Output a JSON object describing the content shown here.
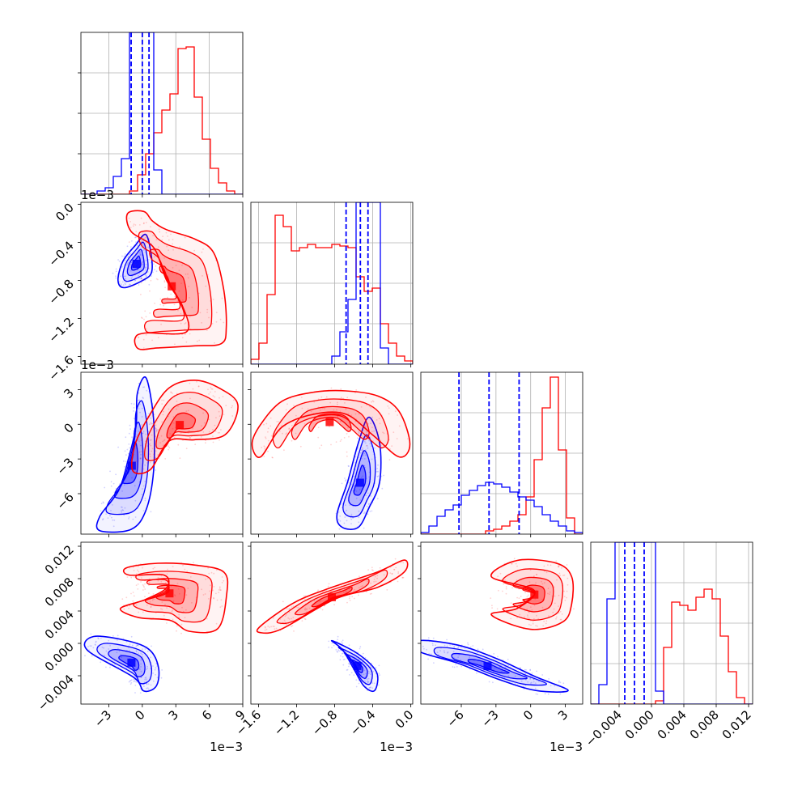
{
  "chart_data": {
    "type": "corner",
    "colors": {
      "blue": "#0000ff",
      "red": "#ff0000"
    },
    "params": [
      {
        "range": [
          -5.5,
          9.0
        ],
        "ticks": [
          -3,
          0,
          3,
          6,
          9
        ],
        "tick_labels": [
          "−3",
          "0",
          "3",
          "6",
          "9"
        ],
        "offset_label": "1e−3"
      },
      {
        "range": [
          -1.68,
          0.02
        ],
        "ticks": [
          -1.6,
          -1.2,
          -0.8,
          -0.4,
          0.0
        ],
        "tick_labels": [
          "−1.6",
          "−1.2",
          "−0.8",
          "−0.4",
          "0.0"
        ],
        "offset_label": "1e−3"
      },
      {
        "range": [
          -9.5,
          4.5
        ],
        "ticks": [
          -6,
          -3,
          0,
          3
        ],
        "tick_labels": [
          "−6",
          "−3",
          "0",
          "3"
        ],
        "offset_label": "1e−3"
      },
      {
        "range": [
          -0.0075,
          0.0125
        ],
        "ticks": [
          -0.004,
          0.0,
          0.004,
          0.008,
          0.012
        ],
        "tick_labels": [
          "−0.004",
          "0.000",
          "0.004",
          "0.008",
          "0.012"
        ],
        "offset_label": ""
      }
    ],
    "diagonal_quantiles_blue": [
      [
        -1.0,
        0.0,
        0.6
      ],
      [
        -0.68,
        -0.53,
        -0.45
      ],
      [
        -6.2,
        -3.6,
        -1.0
      ],
      [
        -0.0033,
        -0.0021,
        -0.0009
      ]
    ],
    "histograms": [
      {
        "edges": [
          -5.5,
          -4.775,
          -4.05,
          -3.325,
          -2.6,
          -1.875,
          -1.15,
          -0.425,
          0.3,
          1.025,
          1.75,
          2.475,
          3.2,
          3.925,
          4.65,
          5.375,
          6.1,
          6.825,
          7.55,
          8.275,
          9.0
        ],
        "blue": [
          0,
          0,
          0.02,
          0.04,
          0.11,
          0.22,
          1.0,
          1.0,
          1.0,
          0.15,
          0,
          0,
          0,
          0,
          0,
          0,
          0,
          0,
          0,
          0
        ],
        "red": [
          0,
          0,
          0,
          0,
          0,
          0,
          0.02,
          0.12,
          0.25,
          0.38,
          0.52,
          0.62,
          0.9,
          0.91,
          0.6,
          0.34,
          0.16,
          0.07,
          0.02,
          0.0
        ]
      },
      {
        "edges": [
          -1.68,
          -1.595,
          -1.51,
          -1.425,
          -1.34,
          -1.255,
          -1.17,
          -1.085,
          -1.0,
          -0.915,
          -0.83,
          -0.745,
          -0.66,
          -0.575,
          -0.49,
          -0.405,
          -0.32,
          -0.235,
          -0.15,
          -0.065,
          0.02
        ],
        "blue": [
          0,
          0,
          0,
          0,
          0,
          0,
          0,
          0,
          0,
          0,
          0.05,
          0.2,
          0.4,
          1.0,
          1.0,
          1.0,
          0.1,
          0,
          0,
          0
        ],
        "red": [
          0.03,
          0.13,
          0.43,
          0.92,
          0.85,
          0.7,
          0.72,
          0.74,
          0.72,
          0.72,
          0.74,
          0.73,
          0.72,
          0.54,
          0.45,
          0.47,
          0.25,
          0.13,
          0.05,
          0.02
        ]
      },
      {
        "edges": [
          -9.5,
          -8.8,
          -8.1,
          -7.4,
          -6.7,
          -6.0,
          -5.3,
          -4.6,
          -3.9,
          -3.2,
          -2.5,
          -1.8,
          -1.1,
          -0.4,
          0.3,
          1.0,
          1.7,
          2.4,
          3.1,
          3.8,
          4.5
        ],
        "blue": [
          0.01,
          0.05,
          0.11,
          0.15,
          0.18,
          0.24,
          0.27,
          0.3,
          0.32,
          0.31,
          0.29,
          0.26,
          0.23,
          0.21,
          0.17,
          0.12,
          0.08,
          0.05,
          0.02,
          0.01
        ],
        "red": [
          0,
          0,
          0,
          0,
          0,
          0,
          0,
          0,
          0.02,
          0.03,
          0.05,
          0.08,
          0.12,
          0.23,
          0.46,
          0.78,
          0.97,
          0.52,
          0.1,
          0.0
        ]
      },
      {
        "edges": [
          -0.0075,
          -0.0065,
          -0.0055,
          -0.0045,
          -0.0035,
          -0.0025,
          -0.0015,
          -0.0005,
          0.0005,
          0.0015,
          0.0025,
          0.0035,
          0.0045,
          0.0055,
          0.0065,
          0.0075,
          0.0085,
          0.0095,
          0.0105,
          0.0115,
          0.0125
        ],
        "blue": [
          0,
          0.12,
          0.65,
          1.0,
          1.0,
          1.0,
          1.0,
          1.0,
          0.08,
          0,
          0,
          0,
          0,
          0,
          0,
          0,
          0,
          0,
          0,
          0
        ],
        "red": [
          0,
          0,
          0,
          0,
          0,
          0,
          0,
          0,
          0.02,
          0.35,
          0.63,
          0.61,
          0.58,
          0.66,
          0.71,
          0.65,
          0.42,
          0.2,
          0.04,
          0.0
        ]
      }
    ],
    "pairs": {
      "1,0": {
        "blue": {
          "center": [
            -0.4,
            -0.6
          ],
          "pts": [
            [
              0.2,
              -0.35
            ],
            [
              0.6,
              -0.5
            ],
            [
              0.7,
              -0.7
            ],
            [
              0.0,
              -0.78
            ],
            [
              -1.5,
              -0.85
            ],
            [
              -2.0,
              -0.78
            ],
            [
              -1.6,
              -0.6
            ],
            [
              -0.6,
              -0.45
            ]
          ]
        },
        "red": {
          "pts": [
            [
              -0.9,
              -0.18
            ],
            [
              0.4,
              -0.16
            ],
            [
              1.1,
              -0.25
            ],
            [
              2.2,
              -0.33
            ],
            [
              4.5,
              -0.42
            ],
            [
              6.0,
              -0.55
            ],
            [
              6.8,
              -0.9
            ],
            [
              7.0,
              -1.25
            ],
            [
              6.6,
              -1.4
            ],
            [
              4.5,
              -1.42
            ],
            [
              1.5,
              -1.44
            ],
            [
              0.0,
              -1.45
            ],
            [
              -0.3,
              -1.35
            ],
            [
              0.5,
              -1.3
            ],
            [
              3.8,
              -1.29
            ],
            [
              3.5,
              -1.05
            ],
            [
              2.2,
              -0.8
            ],
            [
              1.2,
              -0.5
            ],
            [
              -0.6,
              -0.35
            ]
          ]
        }
      },
      "2,0": {
        "blue": {
          "pts": [
            [
              0.2,
              3.2
            ],
            [
              0.8,
              0.0
            ],
            [
              0.8,
              -4.0
            ],
            [
              0.2,
              -7.0
            ],
            [
              -1.0,
              -8.5
            ],
            [
              -3.5,
              -8.6
            ],
            [
              -3.5,
              -7.5
            ],
            [
              -2.0,
              -5.5
            ],
            [
              -1.2,
              -3.0
            ],
            [
              -0.6,
              -0.5
            ],
            [
              -0.5,
              2.0
            ]
          ]
        },
        "red": {
          "pts": [
            [
              1.0,
              0.8
            ],
            [
              2.5,
              2.8
            ],
            [
              4.5,
              3.4
            ],
            [
              6.5,
              2.8
            ],
            [
              8.0,
              1.5
            ],
            [
              7.0,
              -0.8
            ],
            [
              4.5,
              -1.2
            ],
            [
              2.5,
              -1.3
            ],
            [
              1.0,
              -3.5
            ],
            [
              -0.4,
              -3.6
            ],
            [
              -0.2,
              -1.5
            ]
          ]
        }
      },
      "2,1": {
        "blue": {
          "pts": [
            [
              -0.45,
              0.0
            ],
            [
              -0.35,
              -2.0
            ],
            [
              -0.35,
              -5.0
            ],
            [
              -0.45,
              -7.0
            ],
            [
              -0.55,
              -8.5
            ],
            [
              -0.7,
              -8.5
            ],
            [
              -0.75,
              -7.5
            ],
            [
              -0.65,
              -5.0
            ],
            [
              -0.55,
              -2.0
            ]
          ]
        },
        "red": {
          "pts": [
            [
              -1.5,
              0.0
            ],
            [
              -1.3,
              1.8
            ],
            [
              -1.0,
              2.5
            ],
            [
              -0.7,
              2.6
            ],
            [
              -0.4,
              2.2
            ],
            [
              -0.2,
              1.0
            ],
            [
              -0.1,
              -1.5
            ],
            [
              -0.2,
              -2.5
            ],
            [
              -0.45,
              -0.8
            ],
            [
              -0.7,
              0.8
            ],
            [
              -1.0,
              0.8
            ],
            [
              -1.3,
              -0.2
            ],
            [
              -1.5,
              -2.5
            ],
            [
              -1.58,
              -1.5
            ]
          ]
        }
      },
      "3,0": {
        "blue": {
          "pts": [
            [
              -1.2,
              0.0
            ],
            [
              0.5,
              -0.001
            ],
            [
              1.2,
              -0.003
            ],
            [
              1.0,
              -0.005
            ],
            [
              0.0,
              -0.0055
            ],
            [
              -0.8,
              -0.004
            ],
            [
              -4.5,
              -0.001
            ],
            [
              -4.0,
              0.0005
            ]
          ]
        },
        "red": {
          "pts": [
            [
              -1.0,
              0.009
            ],
            [
              1.5,
              0.0095
            ],
            [
              4.5,
              0.0093
            ],
            [
              6.8,
              0.0085
            ],
            [
              7.0,
              0.006
            ],
            [
              6.3,
              0.0023
            ],
            [
              4.0,
              0.002
            ],
            [
              2.5,
              0.0032
            ],
            [
              0.0,
              0.0035
            ],
            [
              -1.5,
              0.0045
            ],
            [
              0.5,
              0.0055
            ],
            [
              2.2,
              0.0068
            ],
            [
              2.0,
              0.0082
            ],
            [
              -0.8,
              0.0082
            ]
          ]
        }
      },
      "3,1": {
        "blue": {
          "pts": [
            [
              -0.8,
              0.0
            ],
            [
              -0.55,
              -0.0015
            ],
            [
              -0.38,
              -0.0035
            ],
            [
              -0.4,
              -0.0055
            ],
            [
              -0.5,
              -0.005
            ],
            [
              -0.6,
              -0.003
            ],
            [
              -0.7,
              -0.001
            ]
          ]
        },
        "red": {
          "pts": [
            [
              -1.5,
              0.0025
            ],
            [
              -1.2,
              0.005
            ],
            [
              -0.9,
              0.0065
            ],
            [
              -0.4,
              0.0085
            ],
            [
              -0.15,
              0.0098
            ],
            [
              -0.15,
              0.0085
            ],
            [
              -0.4,
              0.0068
            ],
            [
              -0.8,
              0.0055
            ],
            [
              -1.3,
              0.0022
            ],
            [
              -1.5,
              0.0018
            ]
          ]
        }
      },
      "3,2": {
        "blue": {
          "pts": [
            [
              -9.0,
              0.0
            ],
            [
              -6.0,
              -0.0005
            ],
            [
              -3.0,
              -0.002
            ],
            [
              0.0,
              -0.004
            ],
            [
              2.5,
              -0.0055
            ],
            [
              0.0,
              -0.0055
            ],
            [
              -3.0,
              -0.0042
            ],
            [
              -6.0,
              -0.0025
            ],
            [
              -9.0,
              -0.0012
            ]
          ]
        },
        "red": {
          "pts": [
            [
              -3.0,
              0.008
            ],
            [
              -1.0,
              0.0098
            ],
            [
              2.0,
              0.0095
            ],
            [
              3.2,
              0.008
            ],
            [
              3.2,
              0.005
            ],
            [
              2.5,
              0.003
            ],
            [
              0.0,
              0.0022
            ],
            [
              -3.0,
              0.0038
            ],
            [
              -1.0,
              0.0045
            ],
            [
              0.3,
              0.0065
            ]
          ]
        }
      }
    }
  }
}
